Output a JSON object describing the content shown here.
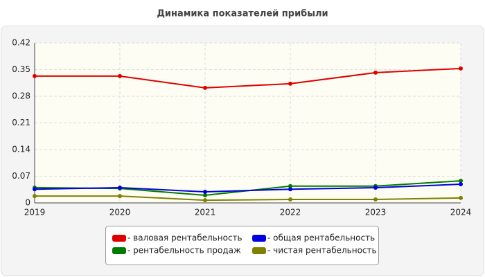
{
  "chart_data": {
    "type": "line",
    "title": "Динамика показателей прибыли",
    "categories": [
      "2019",
      "2020",
      "2021",
      "2022",
      "2023",
      "2024"
    ],
    "series": [
      {
        "name": "- валовая рентабельность",
        "color": "#e00000",
        "values": [
          0.333,
          0.333,
          0.302,
          0.313,
          0.342,
          0.353
        ]
      },
      {
        "name": "- рентабельность продаж",
        "color": "#007a00",
        "values": [
          0.04,
          0.038,
          0.02,
          0.044,
          0.044,
          0.058
        ]
      },
      {
        "name": "- общая рентабельность",
        "color": "#0000e0",
        "values": [
          0.036,
          0.04,
          0.029,
          0.036,
          0.04,
          0.049
        ]
      },
      {
        "name": "- чистая рентабельность",
        "color": "#808000",
        "values": [
          0.018,
          0.018,
          0.007,
          0.009,
          0.009,
          0.013
        ]
      }
    ],
    "ylim": [
      0,
      0.42
    ],
    "yticks": [
      0,
      0.07,
      0.14,
      0.21,
      0.28,
      0.35,
      0.42
    ],
    "grid": true,
    "legend": "bottom"
  }
}
